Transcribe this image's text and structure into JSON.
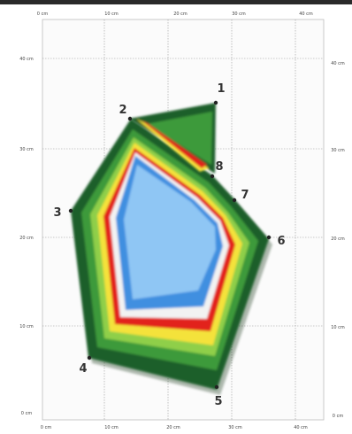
{
  "diagram": {
    "x_ticks_top": [
      "0 cm",
      "10 cm",
      "20 cm",
      "30 cm",
      "40 cm"
    ],
    "x_ticks_bottom": [
      "0 cm",
      "10 cm",
      "20 cm",
      "30 cm",
      "40 cm"
    ],
    "y_ticks_left": [
      "40 cm",
      "30 cm",
      "20 cm",
      "10 cm",
      "0 cm"
    ],
    "y_ticks_right": [
      "40 cm",
      "30 cm",
      "20 cm",
      "10 cm",
      "0 cm"
    ],
    "vertex_labels": [
      "1",
      "2",
      "3",
      "4",
      "5",
      "6",
      "7",
      "8"
    ],
    "colors": {
      "outer_green": "#1f5f2a",
      "green": "#3e9a3a",
      "light_green": "#8fcf4a",
      "yellow": "#f4e23a",
      "red": "#e2231f",
      "white_band": "#f2f2f2",
      "blue": "#3f8fe0",
      "light_blue": "#8fc6f4"
    }
  }
}
